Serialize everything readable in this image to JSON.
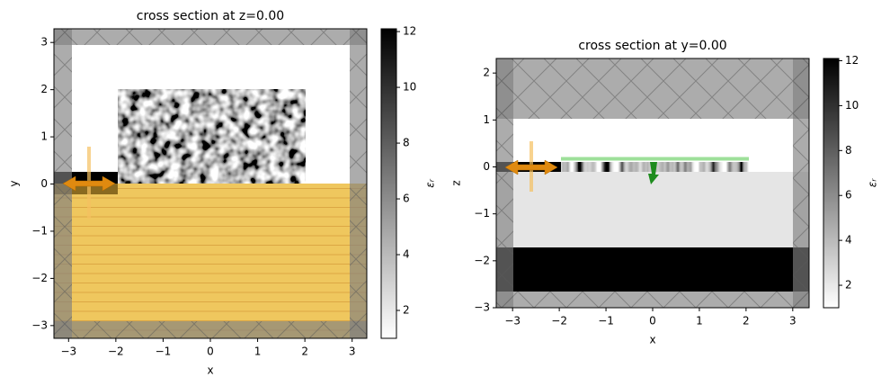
{
  "chart_data": [
    {
      "type": "heatmap",
      "title": "cross section at z=0.00",
      "xlabel": "x",
      "ylabel": "y",
      "xlim": [
        -3.31,
        3.31
      ],
      "ylim": [
        -3.27,
        3.29
      ],
      "xticks": [
        {
          "value": -3,
          "label": "−3"
        },
        {
          "value": -2,
          "label": "−2"
        },
        {
          "value": -1,
          "label": "−1"
        },
        0,
        1,
        2,
        3
      ],
      "yticks": [
        {
          "value": -3,
          "label": "−3"
        },
        {
          "value": -2,
          "label": "−2"
        },
        {
          "value": -1,
          "label": "−1"
        },
        0,
        1,
        2,
        3
      ],
      "colorbar": {
        "label": "εᵣ",
        "lim": [
          1,
          12.1
        ],
        "ticks": [
          2,
          4,
          6,
          8,
          10,
          12
        ],
        "colors": [
          "#ffffff",
          "#000000"
        ]
      }
    },
    {
      "type": "heatmap",
      "title": "cross section at y=0.00",
      "xlabel": "x",
      "ylabel": "z",
      "xlim": [
        -3.35,
        3.35
      ],
      "ylim": [
        -3,
        2.31
      ],
      "xticks": [
        {
          "value": -3,
          "label": "−3"
        },
        {
          "value": -2,
          "label": "−2"
        },
        {
          "value": -1,
          "label": "−1"
        },
        0,
        1,
        2,
        3
      ],
      "yticks": [
        {
          "value": -3,
          "label": "−3"
        },
        {
          "value": -2,
          "label": "−2"
        },
        {
          "value": -1,
          "label": "−1"
        },
        0,
        1,
        2
      ],
      "colorbar": {
        "label": "εᵣ",
        "lim": [
          1,
          12.1
        ],
        "ticks": [
          2,
          4,
          6,
          8,
          10,
          12
        ],
        "colors": [
          "#ffffff",
          "#000000"
        ]
      }
    }
  ]
}
